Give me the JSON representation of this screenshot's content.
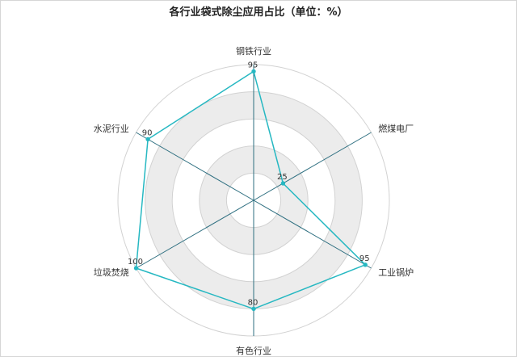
{
  "chart_data": {
    "type": "radar",
    "title": "各行业袋式除尘应用占比（单位：%）",
    "categories": [
      "钢铁行业",
      "燃煤电厂",
      "工业锅炉",
      "有色行业",
      "垃圾焚烧",
      "水泥行业"
    ],
    "series": [
      {
        "values": [
          95,
          25,
          95,
          80,
          100,
          90
        ]
      }
    ],
    "rlim": [
      0,
      100
    ],
    "ring_count": 5,
    "legend": "none",
    "colors": {
      "series_line": "#26b8c2",
      "axis_line": "#2e6f80",
      "ring_band": "#ececec",
      "ring_line": "#d2d2d2"
    }
  }
}
